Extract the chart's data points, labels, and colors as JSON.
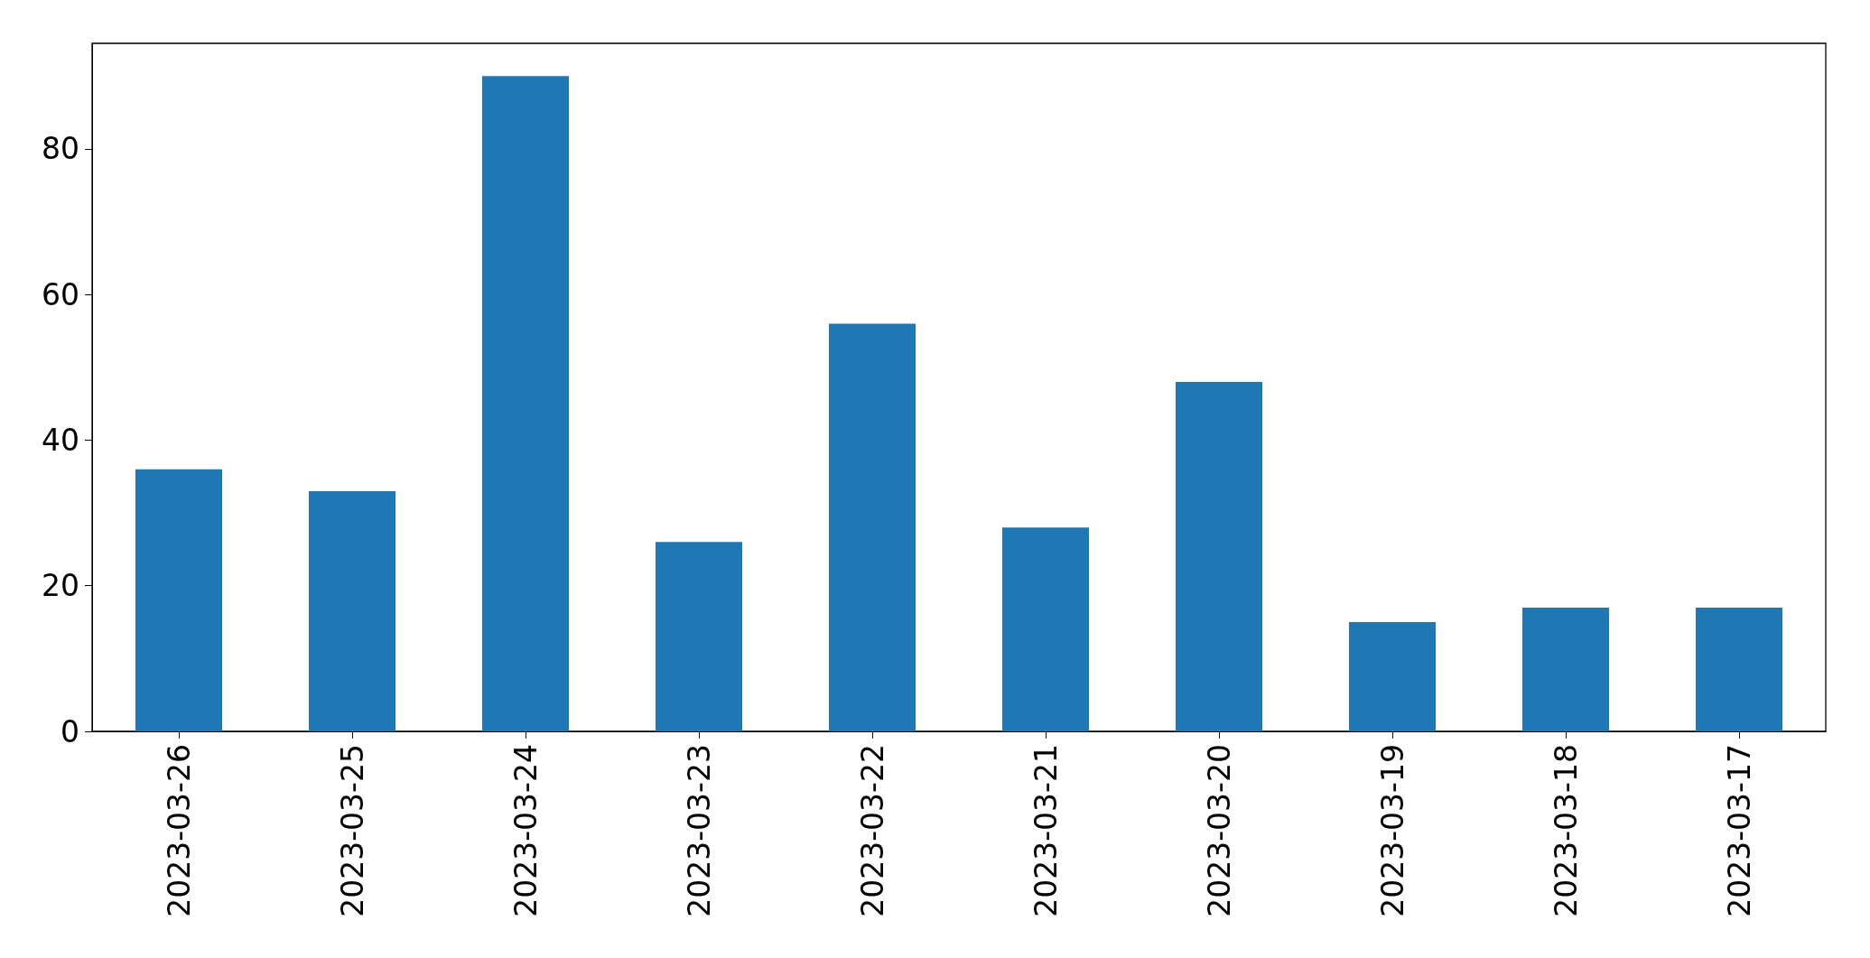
{
  "chart_data": {
    "type": "bar",
    "categories": [
      "2023-03-26",
      "2023-03-25",
      "2023-03-24",
      "2023-03-23",
      "2023-03-22",
      "2023-03-21",
      "2023-03-20",
      "2023-03-19",
      "2023-03-18",
      "2023-03-17"
    ],
    "values": [
      36,
      33,
      90,
      26,
      56,
      28,
      48,
      15,
      17,
      17
    ],
    "color": "#1f77b4",
    "ylim": [
      0,
      94.5
    ],
    "yticks": [
      0,
      20,
      40,
      60,
      80
    ]
  }
}
